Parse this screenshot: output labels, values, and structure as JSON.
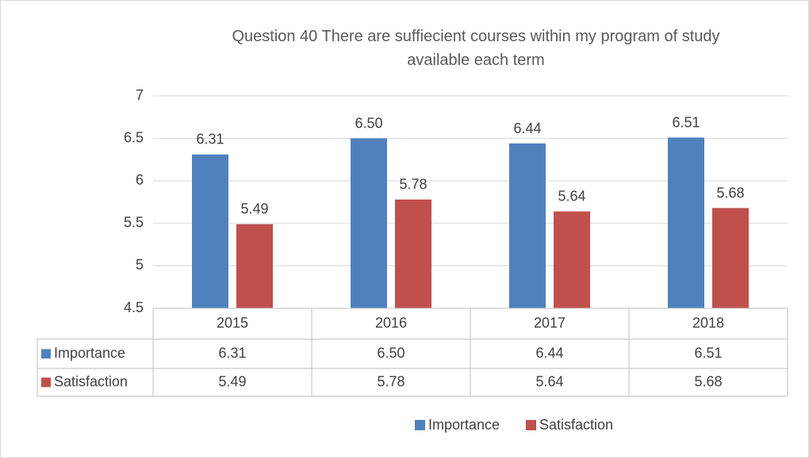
{
  "chart_data": {
    "type": "bar",
    "title": "Question 40 There are suffiecient courses within my program of study available each term",
    "categories": [
      "2015",
      "2016",
      "2017",
      "2018"
    ],
    "series": [
      {
        "name": "Importance",
        "color": "#4f81bd",
        "values": [
          6.31,
          6.5,
          6.44,
          6.51
        ],
        "value_labels": [
          "6.31",
          "6.50",
          "6.44",
          "6.51"
        ]
      },
      {
        "name": "Satisfaction",
        "color": "#c0504d",
        "values": [
          5.49,
          5.78,
          5.64,
          5.68
        ],
        "value_labels": [
          "5.49",
          "5.78",
          "5.64",
          "5.68"
        ]
      }
    ],
    "ylim": [
      4.5,
      7
    ],
    "yticks": [
      4.5,
      5,
      5.5,
      6,
      6.5,
      7
    ],
    "grid": true,
    "legend": "bottom",
    "data_table": true
  }
}
